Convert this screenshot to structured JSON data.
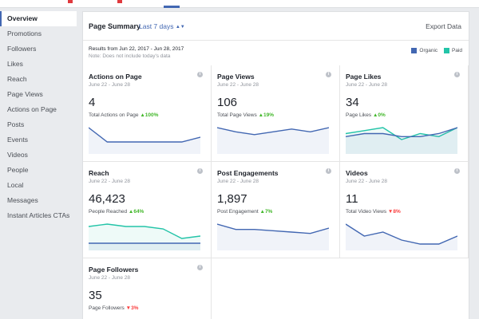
{
  "sidebar": {
    "items": [
      {
        "label": "Overview",
        "active": true
      },
      {
        "label": "Promotions"
      },
      {
        "label": "Followers"
      },
      {
        "label": "Likes"
      },
      {
        "label": "Reach"
      },
      {
        "label": "Page Views"
      },
      {
        "label": "Actions on Page"
      },
      {
        "label": "Posts"
      },
      {
        "label": "Events"
      },
      {
        "label": "Videos"
      },
      {
        "label": "People"
      },
      {
        "label": "Local"
      },
      {
        "label": "Messages"
      },
      {
        "label": "Instant Articles CTAs"
      }
    ]
  },
  "header": {
    "title": "Page Summary",
    "range": "Last 7 days",
    "export": "Export Data"
  },
  "results": {
    "range_text": "Results from Jun 22, 2017 - Jun 28, 2017",
    "note": "Note: Does not include today's data"
  },
  "legend": {
    "organic": "Organic",
    "paid": "Paid",
    "organic_color": "#4267b2",
    "paid_color": "#23c4a8"
  },
  "cards": [
    {
      "title": "Actions on Page",
      "date": "June 22 - June 28",
      "value": "4",
      "sub": "Total Actions on Page",
      "change": "100%",
      "dir": "up",
      "organic": [
        5,
        2,
        2,
        2,
        2,
        2,
        3
      ],
      "paid": null
    },
    {
      "title": "Page Views",
      "date": "June 22 - June 28",
      "value": "106",
      "sub": "Total Page Views",
      "change": "19%",
      "dir": "up",
      "organic": [
        17,
        14,
        12,
        14,
        16,
        14,
        17
      ],
      "paid": null
    },
    {
      "title": "Page Likes",
      "date": "June 22 - June 28",
      "value": "34",
      "sub": "Page Likes",
      "change": "0%",
      "dir": "up",
      "organic": [
        5,
        6,
        6,
        5,
        5,
        6,
        8
      ],
      "paid": [
        6,
        7,
        8,
        4,
        6,
        5,
        8
      ]
    },
    {
      "title": "Reach",
      "date": "June 22 - June 28",
      "value": "46,423",
      "sub": "People Reached",
      "change": "64%",
      "dir": "up",
      "organic": [
        2,
        2,
        2,
        2,
        2,
        2,
        2
      ],
      "paid": [
        9,
        10,
        9,
        9,
        8,
        4,
        5
      ]
    },
    {
      "title": "Post Engagements",
      "date": "June 22 - June 28",
      "value": "1,897",
      "sub": "Post Engagement",
      "change": "7%",
      "dir": "up",
      "organic": [
        18,
        14,
        14,
        13,
        12,
        11,
        15
      ],
      "paid": null
    },
    {
      "title": "Videos",
      "date": "June 22 - June 28",
      "value": "11",
      "sub": "Total Video Views",
      "change": "8%",
      "dir": "down",
      "organic": [
        6,
        3,
        4,
        2,
        1,
        1,
        3
      ],
      "paid": null
    },
    {
      "title": "Page Followers",
      "date": "June 22 - June 28",
      "value": "35",
      "sub": "Page Followers",
      "change": "3%",
      "dir": "down",
      "organic": null,
      "paid": null
    }
  ]
}
